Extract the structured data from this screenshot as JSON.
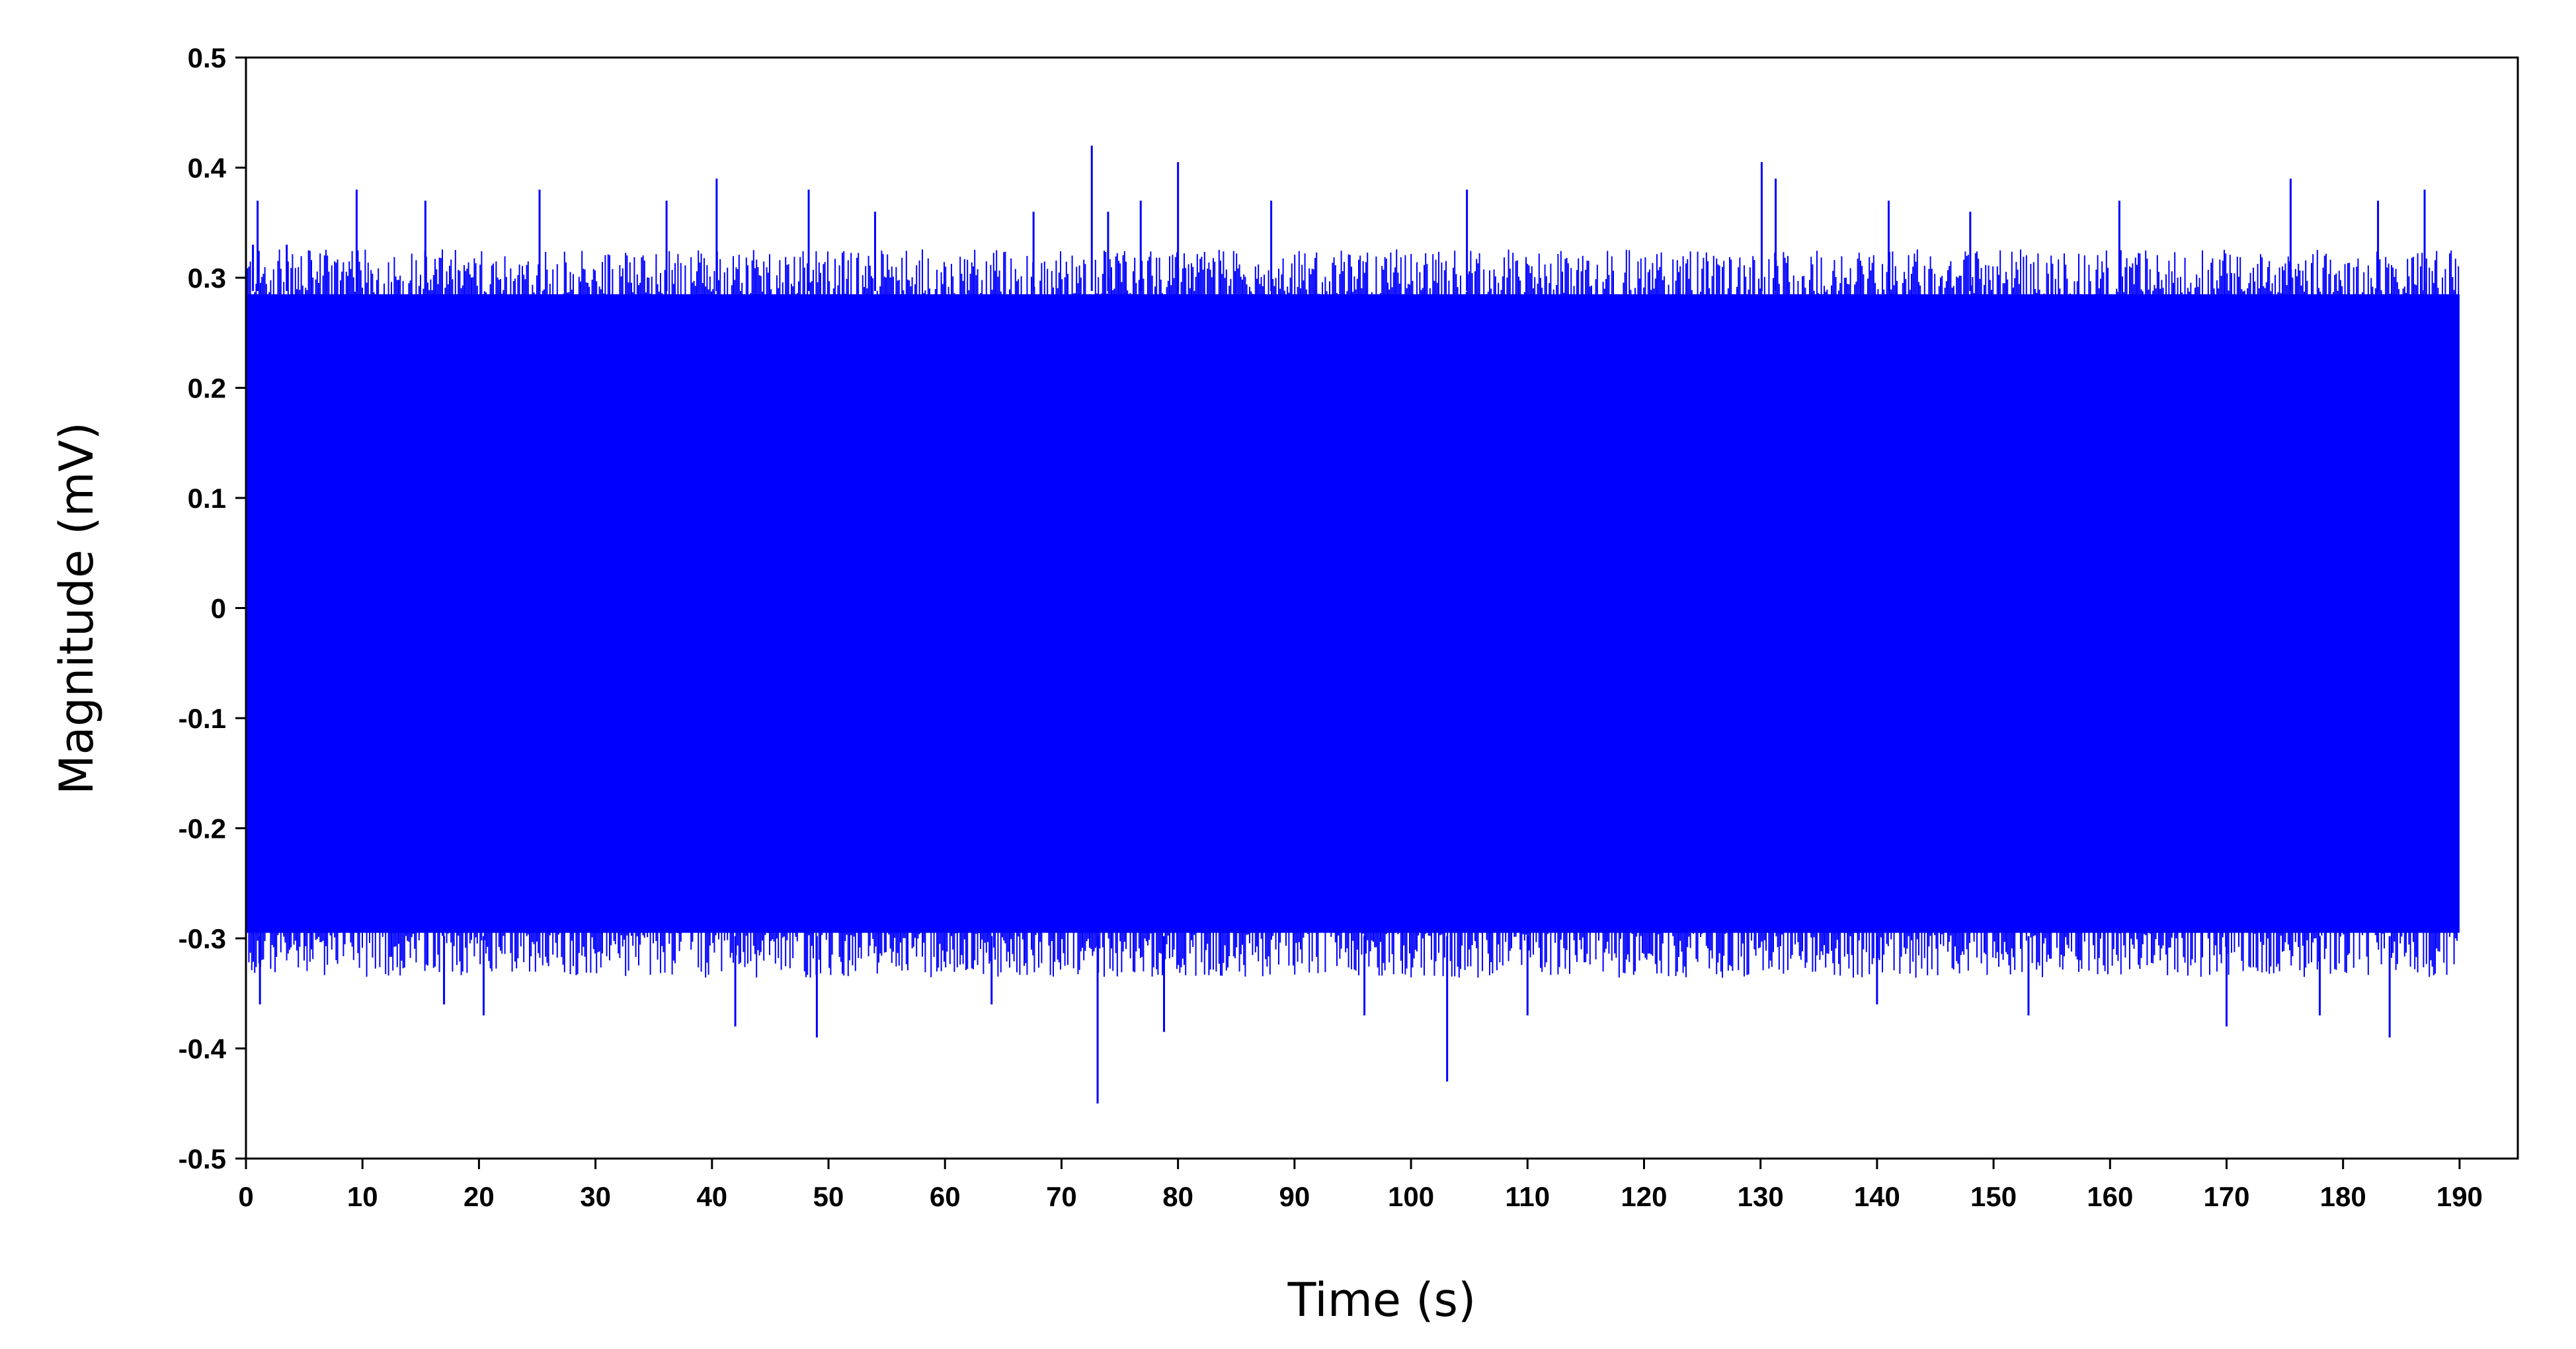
{
  "chart_data": {
    "type": "line",
    "title": "",
    "xlabel": "Time (s)",
    "ylabel": "Magnitude (mV)",
    "xlim": [
      0,
      195
    ],
    "ylim": [
      -0.5,
      0.5
    ],
    "xticks": [
      0,
      10,
      20,
      30,
      40,
      50,
      60,
      70,
      80,
      90,
      100,
      110,
      120,
      130,
      140,
      150,
      160,
      170,
      180,
      190
    ],
    "yticks": [
      0.5,
      0.4,
      0.3,
      0.2,
      0.1,
      0,
      -0.1,
      -0.2,
      -0.3,
      -0.4,
      -0.5
    ],
    "ytick_labels": [
      "0.5",
      "0.4",
      "0.3",
      "0.2",
      "0.1",
      "0",
      "-0.1",
      "-0.2",
      "-0.3",
      "-0.4",
      "-0.5"
    ],
    "grid": false,
    "legend": "none",
    "series": [
      {
        "color": "#0000ff",
        "x_range": [
          0,
          190
        ],
        "envelope_max_approx": 0.3,
        "envelope_min_approx": -0.31,
        "peaks": [
          {
            "x": 0.6,
            "y": 0.33
          },
          {
            "x": 1.0,
            "y": 0.37
          },
          {
            "x": 3.5,
            "y": 0.33
          },
          {
            "x": 9.5,
            "y": 0.38
          },
          {
            "x": 15.4,
            "y": 0.37
          },
          {
            "x": 25.2,
            "y": 0.38
          },
          {
            "x": 36.1,
            "y": 0.37
          },
          {
            "x": 40.4,
            "y": 0.39
          },
          {
            "x": 48.3,
            "y": 0.38
          },
          {
            "x": 54.0,
            "y": 0.36
          },
          {
            "x": 67.6,
            "y": 0.36
          },
          {
            "x": 72.6,
            "y": 0.42
          },
          {
            "x": 74.0,
            "y": 0.36
          },
          {
            "x": 76.8,
            "y": 0.37
          },
          {
            "x": 80.0,
            "y": 0.405
          },
          {
            "x": 88.0,
            "y": 0.37
          },
          {
            "x": 104.8,
            "y": 0.38
          },
          {
            "x": 130.1,
            "y": 0.405
          },
          {
            "x": 131.3,
            "y": 0.39
          },
          {
            "x": 141.0,
            "y": 0.37
          },
          {
            "x": 148.0,
            "y": 0.36
          },
          {
            "x": 160.8,
            "y": 0.37
          },
          {
            "x": 175.5,
            "y": 0.39
          },
          {
            "x": 183.0,
            "y": 0.37
          },
          {
            "x": 187.0,
            "y": 0.38
          }
        ],
        "troughs": [
          {
            "x": 1.2,
            "y": -0.36
          },
          {
            "x": 17.0,
            "y": -0.36
          },
          {
            "x": 20.4,
            "y": -0.37
          },
          {
            "x": 42.0,
            "y": -0.38
          },
          {
            "x": 49.0,
            "y": -0.39
          },
          {
            "x": 64.0,
            "y": -0.36
          },
          {
            "x": 73.1,
            "y": -0.45
          },
          {
            "x": 78.8,
            "y": -0.385
          },
          {
            "x": 96.0,
            "y": -0.37
          },
          {
            "x": 103.1,
            "y": -0.43
          },
          {
            "x": 110.0,
            "y": -0.37
          },
          {
            "x": 140.0,
            "y": -0.36
          },
          {
            "x": 153.0,
            "y": -0.37
          },
          {
            "x": 170.0,
            "y": -0.38
          },
          {
            "x": 178.0,
            "y": -0.37
          },
          {
            "x": 184.0,
            "y": -0.39
          }
        ]
      }
    ]
  }
}
